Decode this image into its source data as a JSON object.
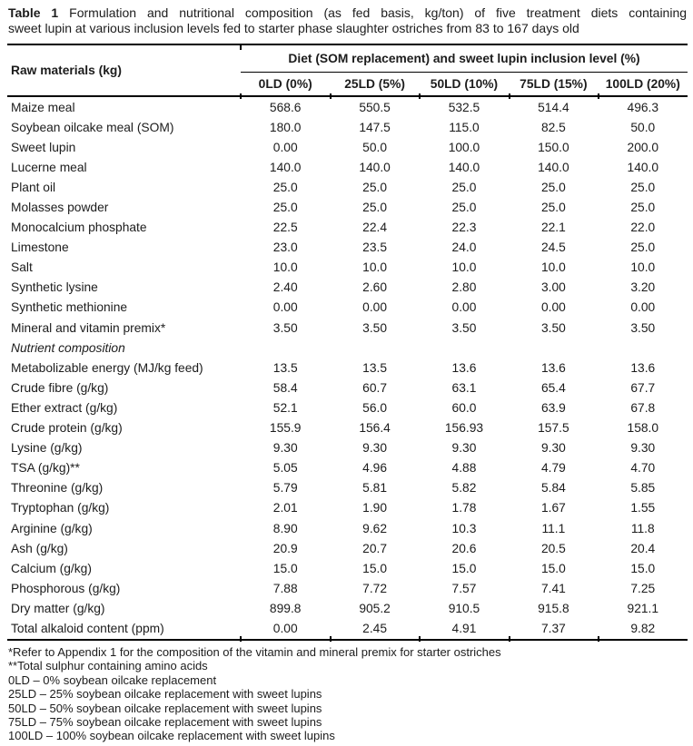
{
  "title": {
    "bold": "Table 1",
    "line1_rest": "Formulation and nutritional composition (as fed basis, kg/ton) of five treatment diets containing",
    "line2": "sweet lupin at various inclusion levels fed to starter phase slaughter ostriches from 83 to 167 days old"
  },
  "table": {
    "row_header": "Raw materials (kg)",
    "group_header": "Diet (SOM replacement) and sweet lupin inclusion level (%)",
    "columns": [
      "0LD (0%)",
      "25LD (5%)",
      "50LD (10%)",
      "75LD (15%)",
      "100LD (20%)"
    ],
    "rows": [
      {
        "label": "Maize meal",
        "values": [
          "568.6",
          "550.5",
          "532.5",
          "514.4",
          "496.3"
        ]
      },
      {
        "label": "Soybean oilcake meal (SOM)",
        "values": [
          "180.0",
          "147.5",
          "115.0",
          "82.5",
          "50.0"
        ]
      },
      {
        "label": "Sweet lupin",
        "values": [
          "0.00",
          "50.0",
          "100.0",
          "150.0",
          "200.0"
        ]
      },
      {
        "label": "Lucerne meal",
        "values": [
          "140.0",
          "140.0",
          "140.0",
          "140.0",
          "140.0"
        ]
      },
      {
        "label": "Plant oil",
        "values": [
          "25.0",
          "25.0",
          "25.0",
          "25.0",
          "25.0"
        ]
      },
      {
        "label": "Molasses powder",
        "values": [
          "25.0",
          "25.0",
          "25.0",
          "25.0",
          "25.0"
        ]
      },
      {
        "label": "Monocalcium phosphate",
        "values": [
          "22.5",
          "22.4",
          "22.3",
          "22.1",
          "22.0"
        ]
      },
      {
        "label": "Limestone",
        "values": [
          "23.0",
          "23.5",
          "24.0",
          "24.5",
          "25.0"
        ]
      },
      {
        "label": "Salt",
        "values": [
          "10.0",
          "10.0",
          "10.0",
          "10.0",
          "10.0"
        ]
      },
      {
        "label": "Synthetic lysine",
        "values": [
          "2.40",
          "2.60",
          "2.80",
          "3.00",
          "3.20"
        ]
      },
      {
        "label": "Synthetic methionine",
        "values": [
          "0.00",
          "0.00",
          "0.00",
          "0.00",
          "0.00"
        ]
      },
      {
        "label": "Mineral and vitamin premix*",
        "values": [
          "3.50",
          "3.50",
          "3.50",
          "3.50",
          "3.50"
        ]
      },
      {
        "label": "Nutrient composition",
        "section": true,
        "values": []
      },
      {
        "label": "Metabolizable energy (MJ/kg feed)",
        "values": [
          "13.5",
          "13.5",
          "13.6",
          "13.6",
          "13.6"
        ]
      },
      {
        "label": "Crude fibre (g/kg)",
        "values": [
          "58.4",
          "60.7",
          "63.1",
          "65.4",
          "67.7"
        ]
      },
      {
        "label": "Ether extract (g/kg)",
        "values": [
          "52.1",
          "56.0",
          "60.0",
          "63.9",
          "67.8"
        ]
      },
      {
        "label": "Crude protein (g/kg)",
        "values": [
          "155.9",
          "156.4",
          "156.93",
          "157.5",
          "158.0"
        ]
      },
      {
        "label": "Lysine (g/kg)",
        "values": [
          "9.30",
          "9.30",
          "9.30",
          "9.30",
          "9.30"
        ]
      },
      {
        "label": "TSA (g/kg)**",
        "values": [
          "5.05",
          "4.96",
          "4.88",
          "4.79",
          "4.70"
        ]
      },
      {
        "label": "Threonine (g/kg)",
        "values": [
          "5.79",
          "5.81",
          "5.82",
          "5.84",
          "5.85"
        ]
      },
      {
        "label": "Tryptophan (g/kg)",
        "values": [
          "2.01",
          "1.90",
          "1.78",
          "1.67",
          "1.55"
        ]
      },
      {
        "label": "Arginine (g/kg)",
        "values": [
          "8.90",
          "9.62",
          "10.3",
          "11.1",
          "11.8"
        ]
      },
      {
        "label": "Ash (g/kg)",
        "values": [
          "20.9",
          "20.7",
          "20.6",
          "20.5",
          "20.4"
        ]
      },
      {
        "label": "Calcium (g/kg)",
        "values": [
          "15.0",
          "15.0",
          "15.0",
          "15.0",
          "15.0"
        ]
      },
      {
        "label": "Phosphorous (g/kg)",
        "values": [
          "7.88",
          "7.72",
          "7.57",
          "7.41",
          "7.25"
        ]
      },
      {
        "label": "Dry matter (g/kg)",
        "values": [
          "899.8",
          "905.2",
          "910.5",
          "915.8",
          "921.1"
        ]
      },
      {
        "label": "Total alkaloid content (ppm)",
        "values": [
          "0.00",
          "2.45",
          "4.91",
          "7.37",
          "9.82"
        ]
      }
    ]
  },
  "footnotes": [
    "*Refer to Appendix 1 for the composition of the vitamin and mineral premix for starter ostriches",
    "**Total sulphur containing amino acids",
    "0LD – 0% soybean oilcake replacement",
    "25LD – 25% soybean oilcake replacement with sweet lupins",
    "50LD – 50% soybean oilcake replacement with sweet lupins",
    "75LD – 75% soybean oilcake replacement with sweet lupins",
    "100LD – 100% soybean oilcake replacement with sweet lupins"
  ]
}
